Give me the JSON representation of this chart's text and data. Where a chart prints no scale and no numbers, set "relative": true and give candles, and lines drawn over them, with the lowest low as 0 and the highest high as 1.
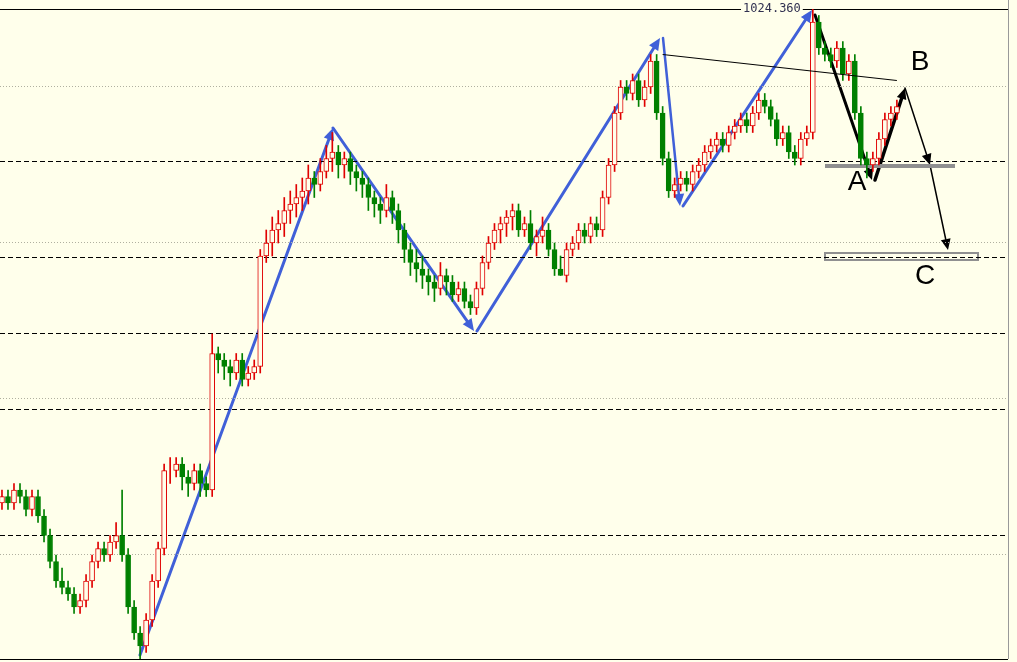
{
  "chart_data": {
    "type": "candlestick",
    "relative": true,
    "categories": [
      null,
      null,
      null,
      null,
      null,
      null,
      null,
      null,
      null,
      null,
      null,
      null,
      null,
      null,
      null,
      null,
      null,
      null,
      null,
      null,
      null,
      null,
      null,
      null,
      null,
      null,
      null,
      null,
      null,
      null,
      null,
      null,
      null,
      null,
      null,
      null,
      null,
      null,
      null,
      null,
      null,
      null,
      null,
      null,
      null,
      null,
      null,
      null,
      null,
      null,
      null,
      null,
      null,
      null,
      null,
      null,
      null,
      null,
      null,
      null,
      null,
      null,
      null,
      null,
      null,
      null,
      null,
      null,
      null,
      null,
      null,
      null,
      null,
      null,
      null,
      null,
      null,
      null,
      null,
      null,
      null,
      null,
      null,
      null,
      null,
      null,
      null,
      null,
      null,
      null,
      null,
      null,
      null,
      null,
      null,
      null,
      null,
      null,
      null,
      null,
      null,
      null,
      null,
      null,
      null,
      null,
      null,
      null,
      null,
      null,
      null,
      null,
      null,
      null,
      null,
      null,
      null,
      null,
      null,
      null,
      null,
      null,
      null,
      null,
      null,
      null,
      null,
      null,
      null,
      null,
      null,
      null,
      null,
      null,
      null,
      null,
      null,
      null,
      null,
      null,
      null,
      null,
      null,
      null,
      null,
      null,
      null,
      null,
      null,
      null
    ],
    "ohlc": [
      [
        0.24,
        0.26,
        0.23,
        0.25
      ],
      [
        0.25,
        0.26,
        0.23,
        0.24
      ],
      [
        0.24,
        0.27,
        0.23,
        0.26
      ],
      [
        0.26,
        0.27,
        0.24,
        0.25
      ],
      [
        0.25,
        0.26,
        0.22,
        0.23
      ],
      [
        0.23,
        0.26,
        0.22,
        0.25
      ],
      [
        0.25,
        0.26,
        0.21,
        0.22
      ],
      [
        0.22,
        0.23,
        0.18,
        0.19
      ],
      [
        0.19,
        0.2,
        0.14,
        0.15
      ],
      [
        0.15,
        0.16,
        0.11,
        0.12
      ],
      [
        0.12,
        0.14,
        0.1,
        0.11
      ],
      [
        0.11,
        0.12,
        0.09,
        0.1
      ],
      [
        0.1,
        0.11,
        0.07,
        0.08
      ],
      [
        0.08,
        0.1,
        0.07,
        0.09
      ],
      [
        0.09,
        0.13,
        0.08,
        0.12
      ],
      [
        0.12,
        0.16,
        0.11,
        0.15
      ],
      [
        0.15,
        0.18,
        0.14,
        0.17
      ],
      [
        0.17,
        0.18,
        0.15,
        0.16
      ],
      [
        0.16,
        0.19,
        0.15,
        0.18
      ],
      [
        0.18,
        0.21,
        0.17,
        0.19
      ],
      [
        0.19,
        0.26,
        0.15,
        0.16
      ],
      [
        0.16,
        0.17,
        0.07,
        0.08
      ],
      [
        0.08,
        0.09,
        0.03,
        0.04
      ],
      [
        0.04,
        0.05,
        0,
        0.02
      ],
      [
        0.02,
        0.07,
        0.01,
        0.06
      ],
      [
        0.06,
        0.13,
        0.05,
        0.12
      ],
      [
        0.12,
        0.18,
        0.11,
        0.17
      ],
      [
        0.17,
        0.3,
        0.16,
        0.29
      ],
      [
        0.29,
        0.31,
        0.27,
        0.29
      ],
      [
        0.29,
        0.31,
        0.28,
        0.3
      ],
      [
        0.3,
        0.31,
        0.26,
        0.28
      ],
      [
        0.28,
        0.29,
        0.25,
        0.27
      ],
      [
        0.27,
        0.3,
        0.26,
        0.29
      ],
      [
        0.29,
        0.3,
        0.25,
        0.27
      ],
      [
        0.27,
        0.28,
        0.25,
        0.26
      ],
      [
        0.26,
        0.5,
        0.25,
        0.47
      ],
      [
        0.47,
        0.48,
        0.44,
        0.46
      ],
      [
        0.46,
        0.47,
        0.43,
        0.45
      ],
      [
        0.45,
        0.46,
        0.42,
        0.44
      ],
      [
        0.44,
        0.47,
        0.43,
        0.46
      ],
      [
        0.46,
        0.47,
        0.42,
        0.43
      ],
      [
        0.43,
        0.45,
        0.42,
        0.44
      ],
      [
        0.44,
        0.46,
        0.43,
        0.45
      ],
      [
        0.45,
        0.63,
        0.44,
        0.62
      ],
      [
        0.62,
        0.66,
        0.61,
        0.64
      ],
      [
        0.64,
        0.68,
        0.62,
        0.66
      ],
      [
        0.66,
        0.69,
        0.64,
        0.67
      ],
      [
        0.67,
        0.71,
        0.65,
        0.69
      ],
      [
        0.69,
        0.72,
        0.67,
        0.7
      ],
      [
        0.7,
        0.73,
        0.68,
        0.71
      ],
      [
        0.71,
        0.74,
        0.69,
        0.72
      ],
      [
        0.72,
        0.76,
        0.7,
        0.74
      ],
      [
        0.74,
        0.75,
        0.71,
        0.73
      ],
      [
        0.73,
        0.77,
        0.72,
        0.75
      ],
      [
        0.75,
        0.79,
        0.74,
        0.77
      ],
      [
        0.77,
        0.81,
        0.75,
        0.78
      ],
      [
        0.78,
        0.79,
        0.74,
        0.76
      ],
      [
        0.76,
        0.78,
        0.74,
        0.77
      ],
      [
        0.77,
        0.78,
        0.73,
        0.75
      ],
      [
        0.75,
        0.76,
        0.72,
        0.74
      ],
      [
        0.74,
        0.75,
        0.71,
        0.73
      ],
      [
        0.73,
        0.74,
        0.69,
        0.71
      ],
      [
        0.71,
        0.72,
        0.68,
        0.7
      ],
      [
        0.7,
        0.71,
        0.67,
        0.69
      ],
      [
        0.69,
        0.73,
        0.68,
        0.71
      ],
      [
        0.71,
        0.72,
        0.67,
        0.69
      ],
      [
        0.69,
        0.7,
        0.64,
        0.66
      ],
      [
        0.66,
        0.67,
        0.61,
        0.63
      ],
      [
        0.63,
        0.64,
        0.59,
        0.61
      ],
      [
        0.61,
        0.63,
        0.58,
        0.6
      ],
      [
        0.6,
        0.62,
        0.57,
        0.59
      ],
      [
        0.59,
        0.6,
        0.56,
        0.58
      ],
      [
        0.58,
        0.59,
        0.55,
        0.57
      ],
      [
        0.57,
        0.61,
        0.56,
        0.59
      ],
      [
        0.59,
        0.6,
        0.56,
        0.58
      ],
      [
        0.58,
        0.59,
        0.55,
        0.56
      ],
      [
        0.56,
        0.58,
        0.55,
        0.57
      ],
      [
        0.57,
        0.58,
        0.54,
        0.55
      ],
      [
        0.55,
        0.56,
        0.53,
        0.54
      ],
      [
        0.54,
        0.58,
        0.53,
        0.57
      ],
      [
        0.57,
        0.62,
        0.56,
        0.61
      ],
      [
        0.61,
        0.65,
        0.6,
        0.64
      ],
      [
        0.64,
        0.67,
        0.63,
        0.66
      ],
      [
        0.66,
        0.68,
        0.64,
        0.67
      ],
      [
        0.67,
        0.69,
        0.65,
        0.68
      ],
      [
        0.68,
        0.7,
        0.66,
        0.69
      ],
      [
        0.69,
        0.7,
        0.65,
        0.66
      ],
      [
        0.66,
        0.68,
        0.65,
        0.67
      ],
      [
        0.67,
        0.69,
        0.63,
        0.64
      ],
      [
        0.64,
        0.66,
        0.62,
        0.65
      ],
      [
        0.65,
        0.68,
        0.64,
        0.66
      ],
      [
        0.66,
        0.67,
        0.62,
        0.63
      ],
      [
        0.63,
        0.64,
        0.59,
        0.6
      ],
      [
        0.6,
        0.62,
        0.59,
        0.59
      ],
      [
        0.59,
        0.64,
        0.58,
        0.63
      ],
      [
        0.63,
        0.65,
        0.62,
        0.64
      ],
      [
        0.64,
        0.67,
        0.63,
        0.66
      ],
      [
        0.66,
        0.67,
        0.64,
        0.65
      ],
      [
        0.65,
        0.68,
        0.64,
        0.67
      ],
      [
        0.67,
        0.68,
        0.65,
        0.66
      ],
      [
        0.66,
        0.72,
        0.65,
        0.71
      ],
      [
        0.71,
        0.77,
        0.7,
        0.76
      ],
      [
        0.76,
        0.85,
        0.75,
        0.84
      ],
      [
        0.84,
        0.89,
        0.83,
        0.88
      ],
      [
        0.88,
        0.89,
        0.86,
        0.87
      ],
      [
        0.87,
        0.9,
        0.86,
        0.89
      ],
      [
        0.89,
        0.9,
        0.85,
        0.86
      ],
      [
        0.86,
        0.89,
        0.85,
        0.88
      ],
      [
        0.88,
        0.93,
        0.87,
        0.92
      ],
      [
        0.92,
        0.93,
        0.83,
        0.84
      ],
      [
        0.84,
        0.85,
        0.76,
        0.77
      ],
      [
        0.77,
        0.78,
        0.71,
        0.72
      ],
      [
        0.72,
        0.74,
        0.71,
        0.73
      ],
      [
        0.73,
        0.75,
        0.72,
        0.74
      ],
      [
        0.74,
        0.75,
        0.72,
        0.73
      ],
      [
        0.73,
        0.76,
        0.72,
        0.75
      ],
      [
        0.75,
        0.77,
        0.74,
        0.76
      ],
      [
        0.76,
        0.79,
        0.75,
        0.78
      ],
      [
        0.78,
        0.8,
        0.77,
        0.79
      ],
      [
        0.79,
        0.81,
        0.78,
        0.8
      ],
      [
        0.8,
        0.81,
        0.78,
        0.79
      ],
      [
        0.79,
        0.82,
        0.78,
        0.81
      ],
      [
        0.81,
        0.83,
        0.8,
        0.82
      ],
      [
        0.82,
        0.84,
        0.81,
        0.83
      ],
      [
        0.83,
        0.84,
        0.81,
        0.82
      ],
      [
        0.82,
        0.85,
        0.81,
        0.84
      ],
      [
        0.84,
        0.87,
        0.83,
        0.86
      ],
      [
        0.86,
        0.87,
        0.84,
        0.85
      ],
      [
        0.85,
        0.86,
        0.82,
        0.83
      ],
      [
        0.83,
        0.84,
        0.79,
        0.8
      ],
      [
        0.8,
        0.82,
        0.79,
        0.81
      ],
      [
        0.81,
        0.82,
        0.77,
        0.78
      ],
      [
        0.78,
        0.79,
        0.76,
        0.77
      ],
      [
        0.77,
        0.81,
        0.76,
        0.8
      ],
      [
        0.8,
        0.82,
        0.79,
        0.81
      ],
      [
        0.81,
        1,
        0.8,
        0.98
      ],
      [
        0.98,
        0.99,
        0.93,
        0.94
      ],
      [
        0.94,
        0.95,
        0.92,
        0.93
      ],
      [
        0.93,
        0.94,
        0.91,
        0.92
      ],
      [
        0.92,
        0.95,
        0.91,
        0.94
      ],
      [
        0.94,
        0.95,
        0.89,
        0.9
      ],
      [
        0.9,
        0.93,
        0.89,
        0.92
      ],
      [
        0.92,
        0.93,
        0.83,
        0.84
      ],
      [
        0.84,
        0.85,
        0.76,
        0.77
      ],
      [
        0.77,
        0.78,
        0.74,
        0.76
      ],
      [
        0.76,
        0.78,
        0.75,
        0.77
      ],
      [
        0.77,
        0.81,
        0.76,
        0.8
      ],
      [
        0.8,
        0.84,
        0.79,
        0.83
      ],
      [
        0.83,
        0.85,
        0.82,
        0.84
      ],
      [
        0.84,
        0.86,
        0.83,
        0.85
      ]
    ],
    "series": [
      {
        "type": "line",
        "color": "#000000",
        "values": [
          null,
          null,
          null,
          null,
          null,
          null,
          null,
          null,
          null,
          null,
          null,
          null,
          null,
          null,
          null,
          null,
          null,
          null,
          null,
          null,
          null,
          null,
          null,
          null,
          null,
          null,
          null,
          null,
          null,
          null,
          null,
          null,
          null,
          null,
          null,
          null,
          null,
          null,
          null,
          null,
          null,
          null,
          null,
          null,
          null,
          null,
          null,
          null,
          null,
          null,
          null,
          null,
          null,
          null,
          null,
          null,
          null,
          null,
          null,
          null,
          null,
          null,
          null,
          null,
          null,
          null,
          null,
          null,
          null,
          null,
          null,
          null,
          null,
          null,
          null,
          null,
          null,
          null,
          null,
          null,
          null,
          null,
          null,
          null,
          null,
          null,
          null,
          null,
          null,
          null,
          null,
          null,
          null,
          null,
          null,
          null,
          null,
          null,
          null,
          null,
          null,
          null,
          null,
          null,
          null,
          null,
          null,
          null,
          null,
          null,
          0.93,
          null,
          null,
          null,
          null,
          null,
          null,
          null,
          null,
          null,
          null,
          null,
          null,
          null,
          null,
          null,
          null,
          null,
          null,
          null,
          null,
          null,
          null,
          null,
          null,
          null,
          null,
          null,
          null,
          null,
          null,
          null,
          null,
          null,
          null,
          null,
          null,
          null,
          null,
          0.89
        ]
      }
    ],
    "ref_lines": [
      {
        "axis": "y",
        "value": 1,
        "color": "#000000",
        "line_style": "solid"
      },
      {
        "axis": "y",
        "value": 0.766,
        "color": "#000000",
        "line_style": "dashed"
      },
      {
        "axis": "y",
        "value": 0.618,
        "color": "#000000",
        "line_style": "dashed"
      },
      {
        "axis": "y",
        "value": 0.501,
        "color": "#000000",
        "line_style": "dashed"
      },
      {
        "axis": "y",
        "value": 0.384,
        "color": "#000000",
        "line_style": "dashed"
      },
      {
        "axis": "y",
        "value": 0.191,
        "color": "#000000",
        "line_style": "dashed"
      },
      {
        "axis": "y",
        "value": 0.881,
        "color": "#b0b0a0",
        "line_style": "dotted"
      },
      {
        "axis": "y",
        "value": 0.641,
        "color": "#b0b0a0",
        "line_style": "dotted"
      },
      {
        "axis": "y",
        "value": 0.401,
        "color": "#b0b0a0",
        "line_style": "dotted"
      },
      {
        "axis": "y",
        "value": 0.162,
        "color": "#b0b0a0",
        "line_style": "dotted"
      }
    ],
    "annotations": [
      "1024.360",
      "A",
      "B",
      "C"
    ]
  }
}
